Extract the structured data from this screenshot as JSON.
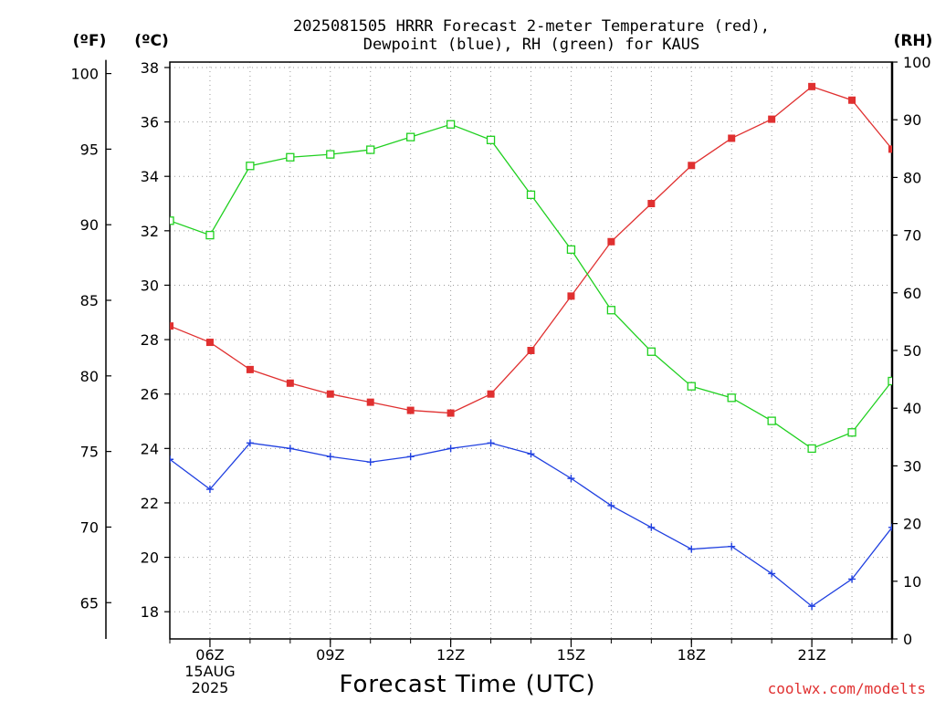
{
  "chart_data": {
    "type": "line",
    "title_line1": "2025081505 HRRR Forecast 2-meter Temperature (red),",
    "title_line2": "Dewpoint (blue), RH (green) for KAUS",
    "x_axis_title": "Forecast Time (UTC)",
    "credit": "coolwx.com/modelts",
    "units": {
      "f": "(ºF)",
      "c": "(ºC)",
      "rh": "(RH)"
    },
    "x_hours": [
      5,
      6,
      7,
      8,
      9,
      10,
      11,
      12,
      13,
      14,
      15,
      16,
      17,
      18,
      19,
      20,
      21,
      22,
      23
    ],
    "x_ticks": [
      {
        "hour": 6,
        "lines": [
          "06Z",
          "15AUG",
          "2025"
        ]
      },
      {
        "hour": 9,
        "lines": [
          "09Z"
        ]
      },
      {
        "hour": 12,
        "lines": [
          "12Z"
        ]
      },
      {
        "hour": 15,
        "lines": [
          "15Z"
        ]
      },
      {
        "hour": 18,
        "lines": [
          "18Z"
        ]
      },
      {
        "hour": 21,
        "lines": [
          "21Z"
        ]
      }
    ],
    "xlim": [
      5,
      23
    ],
    "celsius_axis": {
      "range": [
        17,
        38.2
      ],
      "ticks": [
        18,
        20,
        22,
        24,
        26,
        28,
        30,
        32,
        34,
        36,
        38
      ]
    },
    "fahrenheit_axis": {
      "ticks": [
        65,
        70,
        75,
        80,
        85,
        90,
        95,
        100
      ]
    },
    "rh_axis": {
      "range": [
        0,
        100
      ],
      "ticks": [
        0,
        10,
        20,
        30,
        40,
        50,
        60,
        70,
        80,
        90,
        100
      ]
    },
    "series": [
      {
        "name": "Temperature",
        "color": "#e03030",
        "marker": "filled-square",
        "axis": "celsius",
        "values": [
          28.5,
          27.9,
          26.9,
          26.4,
          26.0,
          25.7,
          25.4,
          25.3,
          26.0,
          27.6,
          29.6,
          31.6,
          33.0,
          34.4,
          35.4,
          36.1,
          37.3,
          36.8,
          35.0
        ]
      },
      {
        "name": "Dewpoint",
        "color": "#2040e0",
        "marker": "plus",
        "axis": "celsius",
        "values": [
          23.6,
          22.5,
          24.2,
          24.0,
          23.7,
          23.5,
          23.7,
          24.0,
          24.2,
          23.8,
          22.9,
          21.9,
          21.1,
          20.3,
          20.4,
          19.4,
          18.2,
          19.2,
          21.1
        ]
      },
      {
        "name": "RH",
        "color": "#20d020",
        "marker": "open-square",
        "axis": "rh",
        "values": [
          72.5,
          70.0,
          82.0,
          83.5,
          84.0,
          84.8,
          87.0,
          89.2,
          86.5,
          77.0,
          67.5,
          57.0,
          49.8,
          43.8,
          41.8,
          37.8,
          33.0,
          35.8,
          44.7
        ]
      }
    ]
  }
}
